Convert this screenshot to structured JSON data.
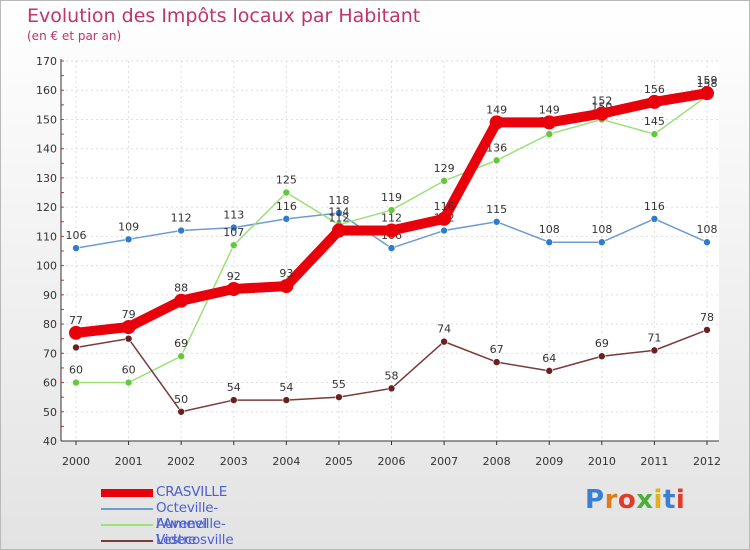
{
  "header": {
    "title": "Evolution des Impôts locaux par Habitant",
    "subtitle": "(en € et par an)"
  },
  "brand": {
    "text": "Proxiti",
    "letter_colors": [
      "#3a7fd0",
      "#e07a1a",
      "#e03c2a",
      "#4caf3a",
      "#e0b21a",
      "#3a7fd0",
      "#e03c2a"
    ]
  },
  "chart_data": {
    "type": "line",
    "title": "Evolution des Impôts locaux par Habitant",
    "subtitle": "(en € et par an)",
    "xlabel": "",
    "ylabel": "",
    "categories": [
      "2000",
      "2001",
      "2002",
      "2003",
      "2004",
      "2005",
      "2006",
      "2007",
      "2008",
      "2009",
      "2010",
      "2011",
      "2012"
    ],
    "ylim": [
      40,
      170
    ],
    "yticks": [
      40,
      50,
      60,
      70,
      80,
      90,
      100,
      110,
      120,
      130,
      140,
      150,
      160,
      170
    ],
    "grid": true,
    "legend_position": "bottom-left",
    "series": [
      {
        "name": "CRASVILLE",
        "color": "#e8000b",
        "marker": "#e8000b",
        "emphasis": true,
        "values": [
          77,
          79,
          88,
          92,
          93,
          112,
          112,
          116,
          149,
          149,
          152,
          156,
          159
        ]
      },
      {
        "name": "Octeville-l'Avenel",
        "color": "#6f9bd0",
        "marker": "#2f7bd0",
        "emphasis": false,
        "values": [
          106,
          109,
          112,
          113,
          116,
          118,
          106,
          112,
          115,
          108,
          108,
          116,
          108
        ]
      },
      {
        "name": "Aumeville-Lestre",
        "color": "#9ce07a",
        "marker": "#63c93a",
        "emphasis": false,
        "values": [
          60,
          60,
          69,
          107,
          125,
          114,
          119,
          129,
          136,
          145,
          150,
          145,
          158
        ]
      },
      {
        "name": "Videcosville",
        "color": "#7a3a3a",
        "marker": "#6a2020",
        "emphasis": false,
        "values": [
          72,
          75,
          50,
          54,
          54,
          55,
          58,
          74,
          67,
          64,
          69,
          71,
          78
        ],
        "labels_shown": [
          false,
          false,
          true,
          true,
          true,
          true,
          true,
          true,
          true,
          true,
          true,
          true,
          true
        ]
      }
    ]
  }
}
